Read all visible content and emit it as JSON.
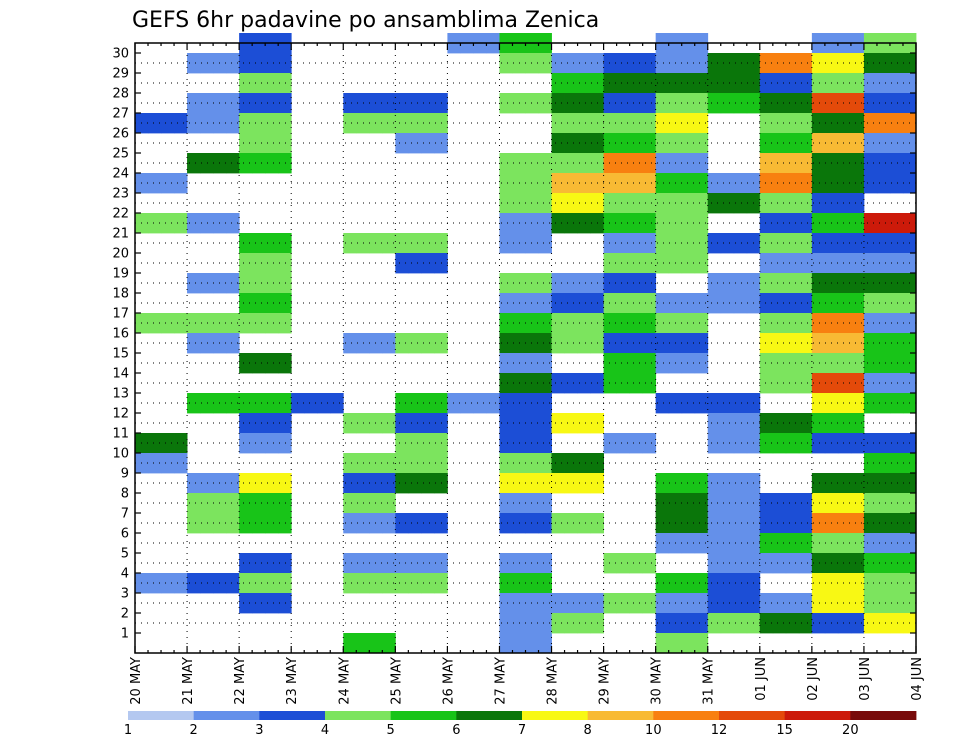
{
  "chart_data": {
    "type": "heatmap",
    "title": "GEFS 6hr padavine po ansamblima Zenica",
    "xlabel": "",
    "ylabel": "",
    "x_tick_labels": [
      "20 MAY",
      "21 MAY",
      "22 MAY",
      "23 MAY",
      "24 MAY",
      "25 MAY",
      "26 MAY",
      "27 MAY",
      "28 MAY",
      "29 MAY",
      "30 MAY",
      "31 MAY",
      "01 JUN",
      "02 JUN",
      "03 JUN",
      "04 JUN"
    ],
    "y_tick_labels": [
      "1",
      "2",
      "3",
      "4",
      "5",
      "6",
      "7",
      "8",
      "9",
      "10",
      "11",
      "12",
      "13",
      "14",
      "15",
      "16",
      "17",
      "18",
      "19",
      "20",
      "21",
      "22",
      "23",
      "24",
      "25",
      "26",
      "27",
      "28",
      "29",
      "30"
    ],
    "ylim": [
      1,
      30
    ],
    "grid": true,
    "levels": [
      1,
      2,
      3,
      4,
      5,
      6,
      7,
      8,
      10,
      12,
      15,
      20
    ],
    "legend_labels": [
      "1",
      "2",
      "3",
      "4",
      "5",
      "6",
      "7",
      "8",
      "10",
      "12",
      "15",
      "20"
    ],
    "colors": [
      "#b4c8f0",
      "#6490ea",
      "#1c4ed6",
      "#7ce45e",
      "#18c418",
      "#0a760a",
      "#f8f814",
      "#f8ba34",
      "#f88010",
      "#e44a0a",
      "#cc1a0a",
      "#780a0a"
    ],
    "legend_position": "bottom",
    "cells": [
      {
        "d": 0,
        "s": 26,
        "c": 2
      },
      {
        "d": 0,
        "s": 23,
        "c": 1
      },
      {
        "d": 0,
        "s": 21,
        "c": 3
      },
      {
        "d": 0,
        "s": 16,
        "c": 3
      },
      {
        "d": 0,
        "s": 10,
        "c": 5
      },
      {
        "d": 0,
        "s": 9,
        "c": 1
      },
      {
        "d": 0,
        "s": 3,
        "c": 1
      },
      {
        "d": 1,
        "s": 29,
        "c": 1
      },
      {
        "d": 1,
        "s": 27,
        "c": 1
      },
      {
        "d": 1,
        "s": 26,
        "c": 1
      },
      {
        "d": 1,
        "s": 24,
        "c": 5
      },
      {
        "d": 1,
        "s": 21,
        "c": 1
      },
      {
        "d": 1,
        "s": 18,
        "c": 1
      },
      {
        "d": 1,
        "s": 16,
        "c": 3
      },
      {
        "d": 1,
        "s": 15,
        "c": 1
      },
      {
        "d": 1,
        "s": 12,
        "c": 4
      },
      {
        "d": 1,
        "s": 8,
        "c": 1
      },
      {
        "d": 1,
        "s": 7,
        "c": 3
      },
      {
        "d": 1,
        "s": 6,
        "c": 3
      },
      {
        "d": 1,
        "s": 3,
        "c": 2
      },
      {
        "d": 2,
        "s": 30,
        "c": 2
      },
      {
        "d": 2,
        "s": 29,
        "c": 2
      },
      {
        "d": 2,
        "s": 28,
        "c": 3
      },
      {
        "d": 2,
        "s": 27,
        "c": 2
      },
      {
        "d": 2,
        "s": 26,
        "c": 3
      },
      {
        "d": 2,
        "s": 25,
        "c": 3
      },
      {
        "d": 2,
        "s": 24,
        "c": 4
      },
      {
        "d": 2,
        "s": 20,
        "c": 4
      },
      {
        "d": 2,
        "s": 19,
        "c": 3
      },
      {
        "d": 2,
        "s": 18,
        "c": 3
      },
      {
        "d": 2,
        "s": 17,
        "c": 4
      },
      {
        "d": 2,
        "s": 16,
        "c": 3
      },
      {
        "d": 2,
        "s": 14,
        "c": 5
      },
      {
        "d": 2,
        "s": 12,
        "c": 4
      },
      {
        "d": 2,
        "s": 11,
        "c": 2
      },
      {
        "d": 2,
        "s": 10,
        "c": 1
      },
      {
        "d": 2,
        "s": 8,
        "c": 6
      },
      {
        "d": 2,
        "s": 7,
        "c": 4
      },
      {
        "d": 2,
        "s": 6,
        "c": 4
      },
      {
        "d": 2,
        "s": 4,
        "c": 2
      },
      {
        "d": 2,
        "s": 3,
        "c": 3
      },
      {
        "d": 2,
        "s": 2,
        "c": 2
      },
      {
        "d": 3,
        "s": 12,
        "c": 2
      },
      {
        "d": 4,
        "s": 27,
        "c": 2
      },
      {
        "d": 4,
        "s": 26,
        "c": 3
      },
      {
        "d": 4,
        "s": 20,
        "c": 3
      },
      {
        "d": 4,
        "s": 15,
        "c": 1
      },
      {
        "d": 4,
        "s": 11,
        "c": 3
      },
      {
        "d": 4,
        "s": 9,
        "c": 3
      },
      {
        "d": 4,
        "s": 8,
        "c": 2
      },
      {
        "d": 4,
        "s": 7,
        "c": 3
      },
      {
        "d": 4,
        "s": 6,
        "c": 1
      },
      {
        "d": 4,
        "s": 4,
        "c": 1
      },
      {
        "d": 4,
        "s": 3,
        "c": 3
      },
      {
        "d": 4,
        "s": 0,
        "c": 4
      },
      {
        "d": 5,
        "s": 27,
        "c": 2
      },
      {
        "d": 5,
        "s": 26,
        "c": 3
      },
      {
        "d": 5,
        "s": 25,
        "c": 1
      },
      {
        "d": 5,
        "s": 20,
        "c": 3
      },
      {
        "d": 5,
        "s": 19,
        "c": 2
      },
      {
        "d": 5,
        "s": 15,
        "c": 3
      },
      {
        "d": 5,
        "s": 12,
        "c": 4
      },
      {
        "d": 5,
        "s": 11,
        "c": 2
      },
      {
        "d": 5,
        "s": 10,
        "c": 3
      },
      {
        "d": 5,
        "s": 9,
        "c": 3
      },
      {
        "d": 5,
        "s": 8,
        "c": 5
      },
      {
        "d": 5,
        "s": 6,
        "c": 2
      },
      {
        "d": 5,
        "s": 4,
        "c": 1
      },
      {
        "d": 5,
        "s": 3,
        "c": 3
      },
      {
        "d": 6,
        "s": 30,
        "c": 1
      },
      {
        "d": 6,
        "s": 12,
        "c": 1
      },
      {
        "d": 7,
        "s": 30,
        "c": 4
      },
      {
        "d": 7,
        "s": 29,
        "c": 3
      },
      {
        "d": 7,
        "s": 27,
        "c": 3
      },
      {
        "d": 7,
        "s": 24,
        "c": 3
      },
      {
        "d": 7,
        "s": 23,
        "c": 3
      },
      {
        "d": 7,
        "s": 22,
        "c": 3
      },
      {
        "d": 7,
        "s": 21,
        "c": 1
      },
      {
        "d": 7,
        "s": 20,
        "c": 1
      },
      {
        "d": 7,
        "s": 18,
        "c": 3
      },
      {
        "d": 7,
        "s": 17,
        "c": 1
      },
      {
        "d": 7,
        "s": 16,
        "c": 4
      },
      {
        "d": 7,
        "s": 15,
        "c": 5
      },
      {
        "d": 7,
        "s": 14,
        "c": 1
      },
      {
        "d": 7,
        "s": 13,
        "c": 5
      },
      {
        "d": 7,
        "s": 12,
        "c": 2
      },
      {
        "d": 7,
        "s": 11,
        "c": 2
      },
      {
        "d": 7,
        "s": 10,
        "c": 2
      },
      {
        "d": 7,
        "s": 9,
        "c": 3
      },
      {
        "d": 7,
        "s": 8,
        "c": 6
      },
      {
        "d": 7,
        "s": 7,
        "c": 1
      },
      {
        "d": 7,
        "s": 6,
        "c": 2
      },
      {
        "d": 7,
        "s": 4,
        "c": 1
      },
      {
        "d": 7,
        "s": 3,
        "c": 4
      },
      {
        "d": 7,
        "s": 2,
        "c": 1
      },
      {
        "d": 7,
        "s": 1,
        "c": 1
      },
      {
        "d": 7,
        "s": 0,
        "c": 1
      },
      {
        "d": 8,
        "s": 29,
        "c": 1
      },
      {
        "d": 8,
        "s": 28,
        "c": 4
      },
      {
        "d": 8,
        "s": 27,
        "c": 5
      },
      {
        "d": 8,
        "s": 26,
        "c": 3
      },
      {
        "d": 8,
        "s": 25,
        "c": 5
      },
      {
        "d": 8,
        "s": 24,
        "c": 3
      },
      {
        "d": 8,
        "s": 23,
        "c": 7
      },
      {
        "d": 8,
        "s": 22,
        "c": 6
      },
      {
        "d": 8,
        "s": 21,
        "c": 5
      },
      {
        "d": 8,
        "s": 18,
        "c": 1
      },
      {
        "d": 8,
        "s": 17,
        "c": 2
      },
      {
        "d": 8,
        "s": 16,
        "c": 3
      },
      {
        "d": 8,
        "s": 15,
        "c": 3
      },
      {
        "d": 8,
        "s": 13,
        "c": 2
      },
      {
        "d": 8,
        "s": 11,
        "c": 6
      },
      {
        "d": 8,
        "s": 9,
        "c": 5
      },
      {
        "d": 8,
        "s": 8,
        "c": 6
      },
      {
        "d": 8,
        "s": 6,
        "c": 3
      },
      {
        "d": 8,
        "s": 2,
        "c": 1
      },
      {
        "d": 8,
        "s": 1,
        "c": 3
      },
      {
        "d": 9,
        "s": 29,
        "c": 2
      },
      {
        "d": 9,
        "s": 28,
        "c": 5
      },
      {
        "d": 9,
        "s": 27,
        "c": 2
      },
      {
        "d": 9,
        "s": 26,
        "c": 3
      },
      {
        "d": 9,
        "s": 25,
        "c": 4
      },
      {
        "d": 9,
        "s": 24,
        "c": 8
      },
      {
        "d": 9,
        "s": 23,
        "c": 7
      },
      {
        "d": 9,
        "s": 22,
        "c": 3
      },
      {
        "d": 9,
        "s": 21,
        "c": 4
      },
      {
        "d": 9,
        "s": 20,
        "c": 1
      },
      {
        "d": 9,
        "s": 19,
        "c": 3
      },
      {
        "d": 9,
        "s": 18,
        "c": 2
      },
      {
        "d": 9,
        "s": 17,
        "c": 3
      },
      {
        "d": 9,
        "s": 16,
        "c": 4
      },
      {
        "d": 9,
        "s": 15,
        "c": 2
      },
      {
        "d": 9,
        "s": 14,
        "c": 4
      },
      {
        "d": 9,
        "s": 13,
        "c": 4
      },
      {
        "d": 9,
        "s": 10,
        "c": 1
      },
      {
        "d": 9,
        "s": 4,
        "c": 3
      },
      {
        "d": 9,
        "s": 2,
        "c": 3
      },
      {
        "d": 10,
        "s": 30,
        "c": 1
      },
      {
        "d": 10,
        "s": 29,
        "c": 1
      },
      {
        "d": 10,
        "s": 28,
        "c": 5
      },
      {
        "d": 10,
        "s": 27,
        "c": 3
      },
      {
        "d": 10,
        "s": 26,
        "c": 6
      },
      {
        "d": 10,
        "s": 25,
        "c": 3
      },
      {
        "d": 10,
        "s": 24,
        "c": 1
      },
      {
        "d": 10,
        "s": 23,
        "c": 4
      },
      {
        "d": 10,
        "s": 22,
        "c": 3
      },
      {
        "d": 10,
        "s": 21,
        "c": 3
      },
      {
        "d": 10,
        "s": 20,
        "c": 3
      },
      {
        "d": 10,
        "s": 19,
        "c": 3
      },
      {
        "d": 10,
        "s": 17,
        "c": 1
      },
      {
        "d": 10,
        "s": 16,
        "c": 3
      },
      {
        "d": 10,
        "s": 15,
        "c": 2
      },
      {
        "d": 10,
        "s": 14,
        "c": 1
      },
      {
        "d": 10,
        "s": 12,
        "c": 2
      },
      {
        "d": 10,
        "s": 8,
        "c": 4
      },
      {
        "d": 10,
        "s": 7,
        "c": 5
      },
      {
        "d": 10,
        "s": 6,
        "c": 5
      },
      {
        "d": 10,
        "s": 5,
        "c": 1
      },
      {
        "d": 10,
        "s": 3,
        "c": 4
      },
      {
        "d": 10,
        "s": 2,
        "c": 1
      },
      {
        "d": 10,
        "s": 1,
        "c": 2
      },
      {
        "d": 10,
        "s": 0,
        "c": 3
      },
      {
        "d": 11,
        "s": 29,
        "c": 5
      },
      {
        "d": 11,
        "s": 28,
        "c": 5
      },
      {
        "d": 11,
        "s": 27,
        "c": 4
      },
      {
        "d": 11,
        "s": 23,
        "c": 1
      },
      {
        "d": 11,
        "s": 22,
        "c": 5
      },
      {
        "d": 11,
        "s": 20,
        "c": 2
      },
      {
        "d": 11,
        "s": 18,
        "c": 1
      },
      {
        "d": 11,
        "s": 17,
        "c": 1
      },
      {
        "d": 11,
        "s": 12,
        "c": 2
      },
      {
        "d": 11,
        "s": 11,
        "c": 1
      },
      {
        "d": 11,
        "s": 10,
        "c": 1
      },
      {
        "d": 11,
        "s": 8,
        "c": 1
      },
      {
        "d": 11,
        "s": 7,
        "c": 1
      },
      {
        "d": 11,
        "s": 6,
        "c": 1
      },
      {
        "d": 11,
        "s": 5,
        "c": 1
      },
      {
        "d": 11,
        "s": 4,
        "c": 1
      },
      {
        "d": 11,
        "s": 3,
        "c": 2
      },
      {
        "d": 11,
        "s": 2,
        "c": 2
      },
      {
        "d": 11,
        "s": 1,
        "c": 3
      },
      {
        "d": 12,
        "s": 29,
        "c": 8
      },
      {
        "d": 12,
        "s": 28,
        "c": 2
      },
      {
        "d": 12,
        "s": 27,
        "c": 5
      },
      {
        "d": 12,
        "s": 26,
        "c": 3
      },
      {
        "d": 12,
        "s": 25,
        "c": 4
      },
      {
        "d": 12,
        "s": 24,
        "c": 7
      },
      {
        "d": 12,
        "s": 23,
        "c": 8
      },
      {
        "d": 12,
        "s": 22,
        "c": 3
      },
      {
        "d": 12,
        "s": 21,
        "c": 2
      },
      {
        "d": 12,
        "s": 20,
        "c": 3
      },
      {
        "d": 12,
        "s": 19,
        "c": 1
      },
      {
        "d": 12,
        "s": 18,
        "c": 3
      },
      {
        "d": 12,
        "s": 17,
        "c": 2
      },
      {
        "d": 12,
        "s": 16,
        "c": 3
      },
      {
        "d": 12,
        "s": 15,
        "c": 6
      },
      {
        "d": 12,
        "s": 14,
        "c": 3
      },
      {
        "d": 12,
        "s": 13,
        "c": 3
      },
      {
        "d": 12,
        "s": 11,
        "c": 5
      },
      {
        "d": 12,
        "s": 10,
        "c": 4
      },
      {
        "d": 12,
        "s": 7,
        "c": 2
      },
      {
        "d": 12,
        "s": 6,
        "c": 2
      },
      {
        "d": 12,
        "s": 5,
        "c": 4
      },
      {
        "d": 12,
        "s": 4,
        "c": 1
      },
      {
        "d": 12,
        "s": 2,
        "c": 1
      },
      {
        "d": 12,
        "s": 1,
        "c": 5
      },
      {
        "d": 13,
        "s": 30,
        "c": 1
      },
      {
        "d": 13,
        "s": 29,
        "c": 6
      },
      {
        "d": 13,
        "s": 28,
        "c": 3
      },
      {
        "d": 13,
        "s": 27,
        "c": 9
      },
      {
        "d": 13,
        "s": 26,
        "c": 5
      },
      {
        "d": 13,
        "s": 25,
        "c": 7
      },
      {
        "d": 13,
        "s": 24,
        "c": 5
      },
      {
        "d": 13,
        "s": 23,
        "c": 5
      },
      {
        "d": 13,
        "s": 22,
        "c": 2
      },
      {
        "d": 13,
        "s": 21,
        "c": 4
      },
      {
        "d": 13,
        "s": 20,
        "c": 2
      },
      {
        "d": 13,
        "s": 19,
        "c": 1
      },
      {
        "d": 13,
        "s": 18,
        "c": 5
      },
      {
        "d": 13,
        "s": 17,
        "c": 4
      },
      {
        "d": 13,
        "s": 16,
        "c": 8
      },
      {
        "d": 13,
        "s": 15,
        "c": 7
      },
      {
        "d": 13,
        "s": 14,
        "c": 3
      },
      {
        "d": 13,
        "s": 13,
        "c": 9
      },
      {
        "d": 13,
        "s": 12,
        "c": 6
      },
      {
        "d": 13,
        "s": 11,
        "c": 4
      },
      {
        "d": 13,
        "s": 10,
        "c": 2
      },
      {
        "d": 13,
        "s": 8,
        "c": 5
      },
      {
        "d": 13,
        "s": 7,
        "c": 6
      },
      {
        "d": 13,
        "s": 6,
        "c": 8
      },
      {
        "d": 13,
        "s": 5,
        "c": 3
      },
      {
        "d": 13,
        "s": 4,
        "c": 5
      },
      {
        "d": 13,
        "s": 3,
        "c": 6
      },
      {
        "d": 13,
        "s": 2,
        "c": 6
      },
      {
        "d": 13,
        "s": 1,
        "c": 2
      },
      {
        "d": 14,
        "s": 30,
        "c": 3
      },
      {
        "d": 14,
        "s": 29,
        "c": 5
      },
      {
        "d": 14,
        "s": 28,
        "c": 1
      },
      {
        "d": 14,
        "s": 27,
        "c": 2
      },
      {
        "d": 14,
        "s": 26,
        "c": 8
      },
      {
        "d": 14,
        "s": 25,
        "c": 1
      },
      {
        "d": 14,
        "s": 24,
        "c": 2
      },
      {
        "d": 14,
        "s": 23,
        "c": 2
      },
      {
        "d": 14,
        "s": 21,
        "c": 10
      },
      {
        "d": 14,
        "s": 20,
        "c": 2
      },
      {
        "d": 14,
        "s": 19,
        "c": 1
      },
      {
        "d": 14,
        "s": 18,
        "c": 5
      },
      {
        "d": 14,
        "s": 17,
        "c": 3
      },
      {
        "d": 14,
        "s": 16,
        "c": 1
      },
      {
        "d": 14,
        "s": 15,
        "c": 4
      },
      {
        "d": 14,
        "s": 14,
        "c": 4
      },
      {
        "d": 14,
        "s": 13,
        "c": 1
      },
      {
        "d": 14,
        "s": 12,
        "c": 4
      },
      {
        "d": 14,
        "s": 10,
        "c": 2
      },
      {
        "d": 14,
        "s": 9,
        "c": 4
      },
      {
        "d": 14,
        "s": 8,
        "c": 5
      },
      {
        "d": 14,
        "s": 7,
        "c": 3
      },
      {
        "d": 14,
        "s": 6,
        "c": 5
      },
      {
        "d": 14,
        "s": 5,
        "c": 1
      },
      {
        "d": 14,
        "s": 4,
        "c": 4
      },
      {
        "d": 14,
        "s": 3,
        "c": 3
      },
      {
        "d": 14,
        "s": 2,
        "c": 3
      },
      {
        "d": 14,
        "s": 1,
        "c": 6
      }
    ]
  }
}
